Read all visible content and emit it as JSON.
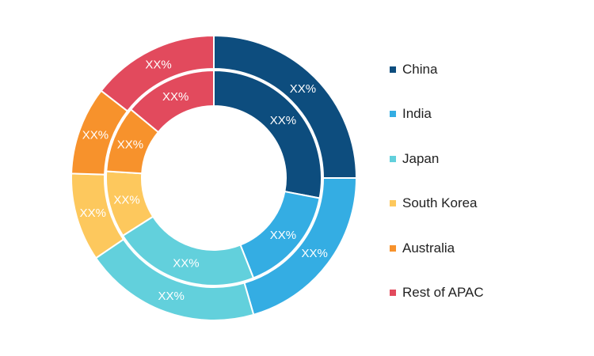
{
  "chart_data": {
    "type": "pie",
    "subtype": "double-donut",
    "categories": [
      "China",
      "India",
      "Japan",
      "South Korea",
      "Australia",
      "Rest of APAC"
    ],
    "colors": [
      "#0d4d7e",
      "#34ade3",
      "#62d0dc",
      "#fdc85d",
      "#f7922c",
      "#e24a5d"
    ],
    "series": [
      {
        "ring": "outer",
        "values": [
          25,
          20.5,
          20,
          10,
          10,
          14.5
        ],
        "labels": [
          "XX%",
          "XX%",
          "XX%",
          "XX%",
          "XX%",
          "XX%"
        ]
      },
      {
        "ring": "inner",
        "values": [
          28,
          16,
          22,
          10,
          10,
          14
        ],
        "labels": [
          "XX%",
          "XX%",
          "XX%",
          "XX%",
          "XX%",
          "XX%"
        ]
      }
    ],
    "legend": {
      "position": "right",
      "entries": [
        "China",
        "India",
        "Japan",
        "South Korea",
        "Australia",
        "Rest of APAC"
      ]
    }
  }
}
